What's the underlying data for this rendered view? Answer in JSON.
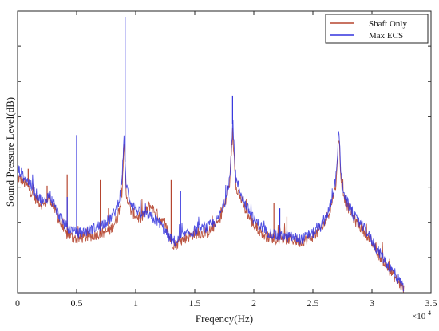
{
  "chart_data": {
    "type": "line",
    "title": "",
    "xlabel": "Freqency(Hz)",
    "ylabel": "Sound Pressure Level(dB)",
    "x_multiplier_label": "×10",
    "x_multiplier_exponent": "4",
    "xlim": [
      0,
      35000
    ],
    "x_ticks": [
      0,
      5000,
      10000,
      15000,
      20000,
      25000,
      30000,
      35000
    ],
    "x_tick_labels": [
      "0",
      "0.5",
      "1",
      "1.5",
      "2",
      "2.5",
      "3",
      "3.5"
    ],
    "y_tick_labels_visible": false,
    "ylim": [
      0,
      100
    ],
    "grid": false,
    "legend_position": "top-right",
    "series": [
      {
        "name": "Shaft Only",
        "color": "#b5452f",
        "x": [
          0,
          800,
          1600,
          2200,
          2700,
          3200,
          4000,
          5000,
          6000,
          7000,
          7800,
          8400,
          8800,
          9000,
          9200,
          9600,
          10400,
          11200,
          12000,
          12600,
          13000,
          13400,
          14000,
          15000,
          16000,
          17000,
          17600,
          18000,
          18200,
          18500,
          19200,
          20000,
          21000,
          22000,
          23000,
          24000,
          25000,
          25800,
          26500,
          27000,
          27200,
          27400,
          27800,
          28500,
          29500,
          30500,
          31500,
          32200,
          32700
        ],
        "y": [
          41,
          38,
          33,
          31,
          34,
          29,
          21,
          19,
          20,
          21,
          22,
          26,
          33,
          52,
          35,
          29,
          26,
          31,
          27,
          23,
          18,
          17,
          19,
          21,
          21,
          25,
          32,
          40,
          57,
          38,
          30,
          24,
          20,
          19,
          19,
          18,
          20,
          23,
          30,
          40,
          57,
          38,
          32,
          26,
          21,
          14,
          8,
          4,
          1
        ],
        "spikes": [
          {
            "x": 900,
            "y": 44
          },
          {
            "x": 2500,
            "y": 38
          },
          {
            "x": 4200,
            "y": 42
          },
          {
            "x": 7000,
            "y": 40
          },
          {
            "x": 7700,
            "y": 30
          },
          {
            "x": 13000,
            "y": 40
          },
          {
            "x": 21700,
            "y": 32
          },
          {
            "x": 22800,
            "y": 27
          },
          {
            "x": 31500,
            "y": 12
          }
        ]
      },
      {
        "name": "Max ECS",
        "color": "#3333dd",
        "x": [
          0,
          800,
          1600,
          2200,
          2700,
          3200,
          4000,
          5000,
          6000,
          7000,
          7800,
          8400,
          8800,
          9000,
          9200,
          9600,
          10400,
          11200,
          12000,
          12600,
          13000,
          13400,
          14000,
          15000,
          16000,
          17000,
          17600,
          18000,
          18200,
          18500,
          19200,
          20000,
          21000,
          22000,
          23000,
          24000,
          25000,
          25800,
          26500,
          27000,
          27200,
          27400,
          27800,
          28500,
          29500,
          30500,
          31500,
          32200,
          32700
        ],
        "y": [
          44,
          40,
          35,
          32,
          35,
          30,
          24,
          21,
          22,
          24,
          26,
          30,
          37,
          55,
          38,
          32,
          28,
          27,
          25,
          21,
          19,
          18,
          20,
          22,
          23,
          26,
          33,
          42,
          60,
          40,
          32,
          26,
          22,
          20,
          20,
          19,
          21,
          24,
          31,
          42,
          59,
          40,
          33,
          27,
          22,
          15,
          9,
          5,
          2
        ],
        "spikes": [
          {
            "x": 5000,
            "y": 56
          },
          {
            "x": 9100,
            "y": 98
          },
          {
            "x": 18200,
            "y": 70
          },
          {
            "x": 13800,
            "y": 36
          },
          {
            "x": 22200,
            "y": 30
          },
          {
            "x": 4200,
            "y": 34
          }
        ]
      }
    ]
  }
}
